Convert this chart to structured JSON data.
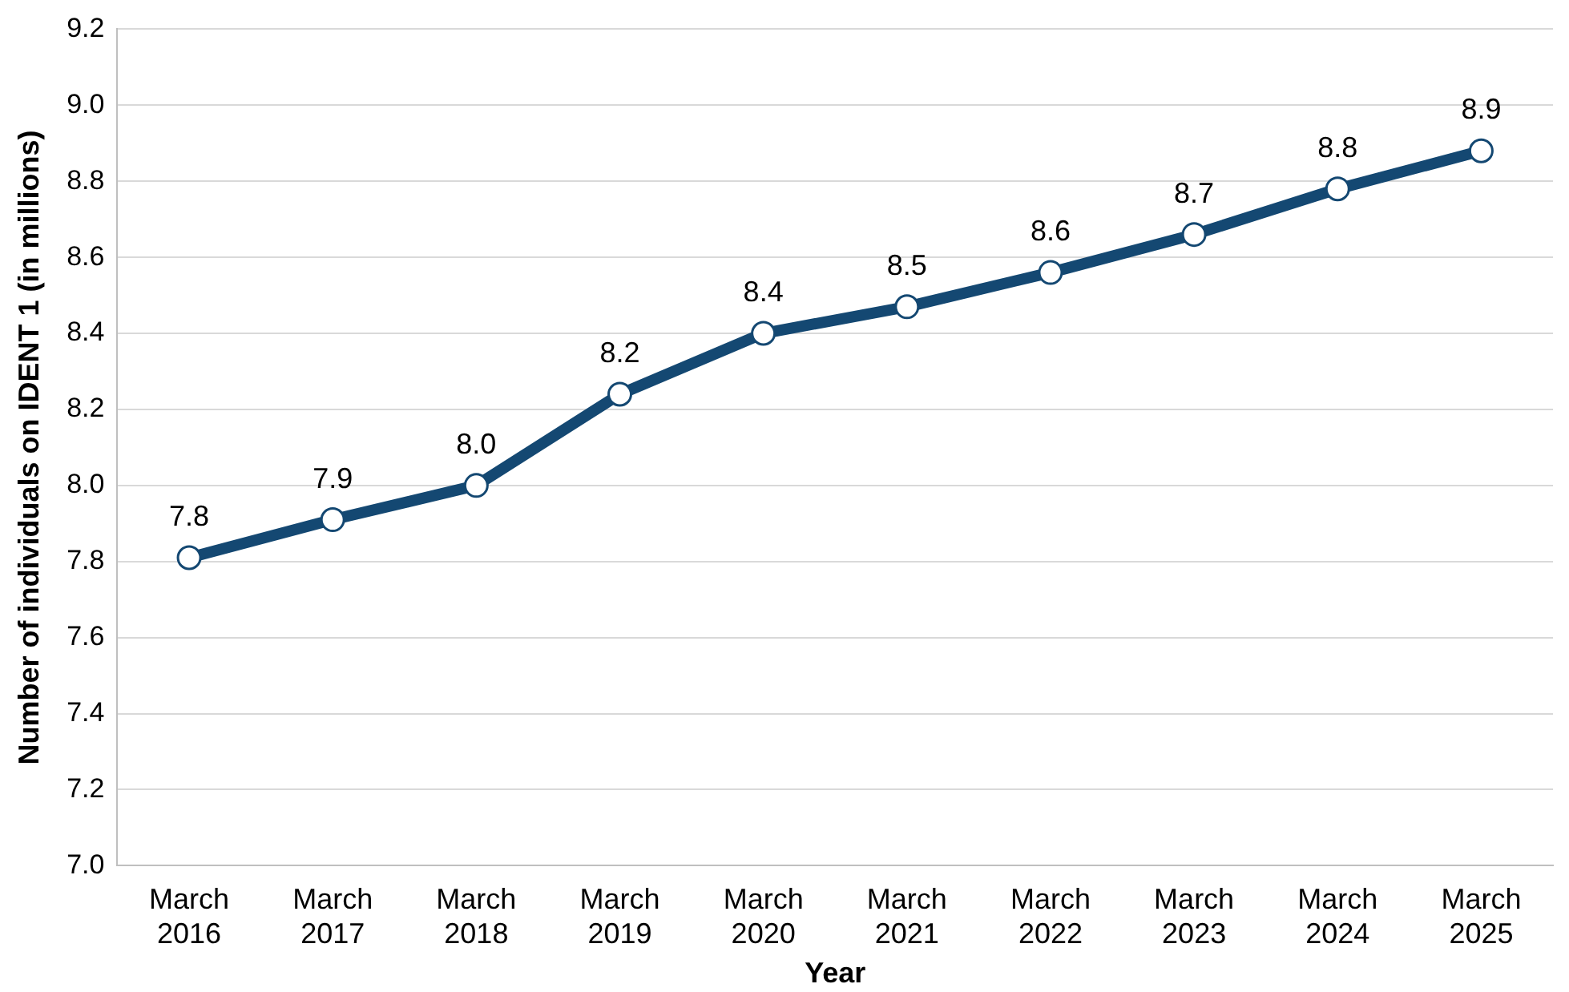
{
  "chart_data": {
    "type": "line",
    "xlabel": "Year",
    "ylabel": "Number of individuals on IDENT 1 (in millions)",
    "categories": [
      "March 2016",
      "March 2017",
      "March 2018",
      "March 2019",
      "March 2020",
      "March 2021",
      "March 2022",
      "March 2023",
      "March 2024",
      "March 2025"
    ],
    "series": [
      {
        "color": "#144872",
        "values": [
          7.81,
          7.91,
          8.0,
          8.24,
          8.4,
          8.47,
          8.56,
          8.66,
          8.78,
          8.88
        ],
        "value_labels": [
          "7.8",
          "7.9",
          "8.0",
          "8.2",
          "8.4",
          "8.5",
          "8.6",
          "8.7",
          "8.8",
          "8.9"
        ]
      }
    ],
    "ylim": [
      7.0,
      9.2
    ],
    "yticks": [
      {
        "value": 7.0,
        "label": "7.0"
      },
      {
        "value": 7.2,
        "label": "7.2"
      },
      {
        "value": 7.4,
        "label": "7.4"
      },
      {
        "value": 7.6,
        "label": "7.6"
      },
      {
        "value": 7.8,
        "label": "7.8"
      },
      {
        "value": 8.0,
        "label": "8.0"
      },
      {
        "value": 8.2,
        "label": "8.2"
      },
      {
        "value": 8.4,
        "label": "8.4"
      },
      {
        "value": 8.6,
        "label": "8.6"
      },
      {
        "value": 8.8,
        "label": "8.8"
      },
      {
        "value": 9.0,
        "label": "9.0"
      },
      {
        "value": 9.2,
        "label": "9.2"
      }
    ],
    "grid": "y",
    "legend": false,
    "marker": "circle",
    "line_style": "solid"
  }
}
